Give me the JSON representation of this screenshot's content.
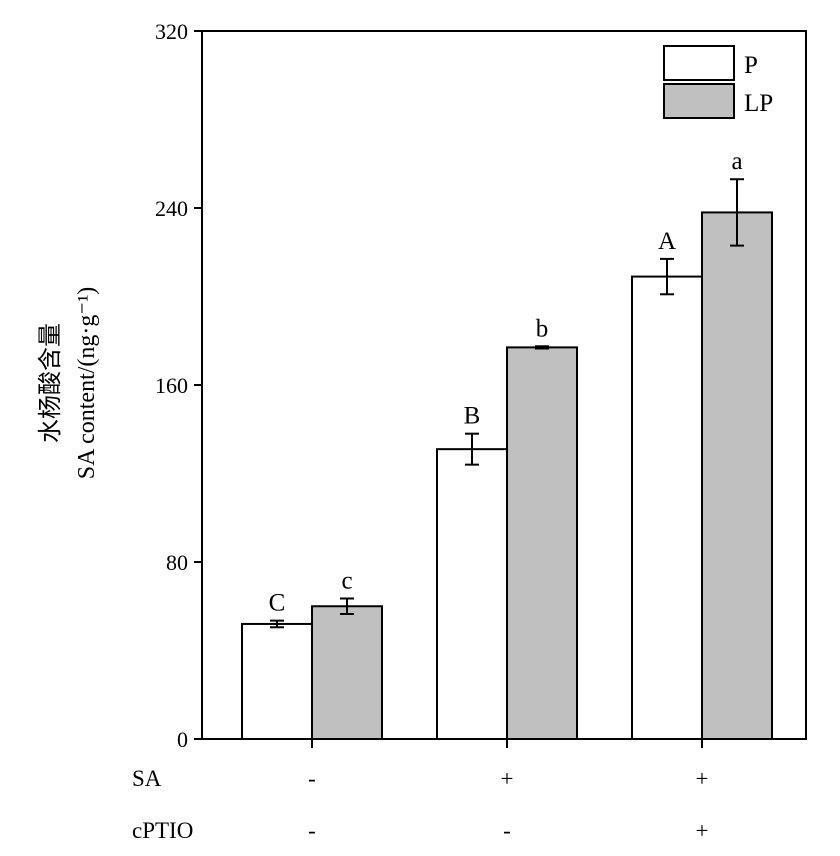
{
  "chart_data": {
    "type": "bar",
    "ylabel_lines": [
      "水杨酸含量",
      "SA content/(ng·g⁻¹)"
    ],
    "yticks": [
      "0",
      "80",
      "160",
      "240",
      "320"
    ],
    "ylim": [
      0,
      320
    ],
    "groups": 3,
    "series": [
      {
        "name": "P",
        "color": "#ffffff",
        "values": [
          52,
          131,
          209
        ],
        "errors": [
          1.5,
          7,
          8
        ],
        "letters": [
          "C",
          "B",
          "A"
        ]
      },
      {
        "name": "LP",
        "color": "#c0c0c0",
        "values": [
          60,
          177,
          238
        ],
        "errors": [
          3.5,
          0.5,
          15
        ],
        "letters": [
          "c",
          "b",
          "a"
        ]
      }
    ],
    "treatments": [
      {
        "label": "SA",
        "values": [
          "-",
          "+",
          "+"
        ]
      },
      {
        "label": "cPTIO",
        "values": [
          "-",
          "-",
          "+"
        ]
      }
    ],
    "legend_position": "top-right"
  }
}
